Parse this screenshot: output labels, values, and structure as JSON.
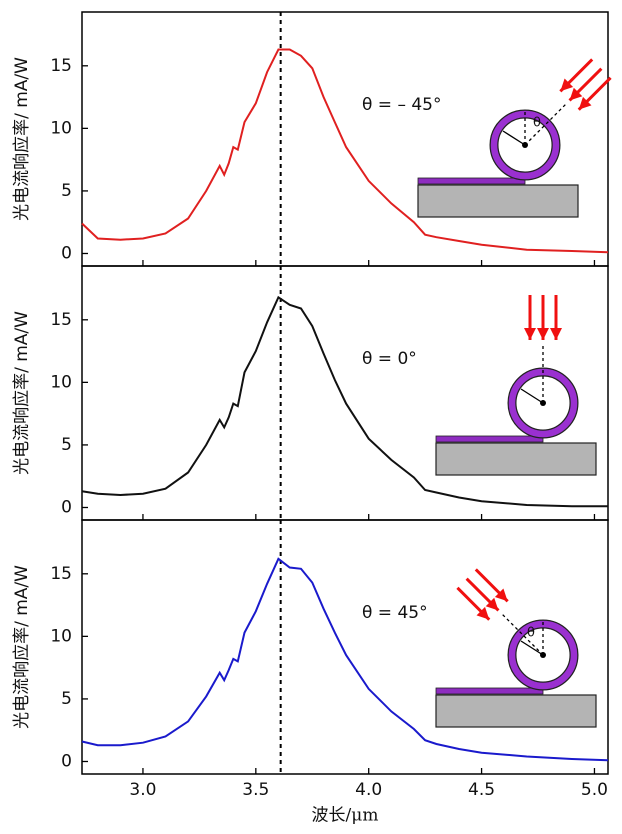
{
  "chart_data": [
    {
      "type": "line",
      "ylabel": "光电流响应率/ mA/W",
      "annotation": "θ = – 45°",
      "inset_label": "θ",
      "color": "#e02020",
      "x": [
        2.73,
        2.8,
        2.9,
        3.0,
        3.1,
        3.2,
        3.28,
        3.34,
        3.36,
        3.38,
        3.4,
        3.42,
        3.45,
        3.5,
        3.55,
        3.6,
        3.65,
        3.7,
        3.75,
        3.8,
        3.85,
        3.9,
        4.0,
        4.1,
        4.2,
        4.25,
        4.3,
        4.4,
        4.5,
        4.7,
        4.9,
        5.06
      ],
      "values": [
        2.4,
        1.2,
        1.1,
        1.2,
        1.6,
        2.8,
        5.0,
        7.0,
        6.3,
        7.2,
        8.5,
        8.3,
        10.5,
        12.0,
        14.5,
        16.3,
        16.3,
        15.8,
        14.8,
        12.5,
        10.5,
        8.5,
        5.8,
        4.0,
        2.5,
        1.5,
        1.3,
        1.0,
        0.7,
        0.3,
        0.2,
        0.1
      ],
      "vline": 3.61,
      "ylim": [
        -1,
        19.3
      ],
      "yticks": [
        0,
        5,
        10,
        15
      ]
    },
    {
      "type": "line",
      "ylabel": "光电流响应率/ mA/W",
      "annotation": "θ = 0°",
      "color": "#111111",
      "x": [
        2.73,
        2.8,
        2.9,
        3.0,
        3.1,
        3.2,
        3.28,
        3.34,
        3.36,
        3.38,
        3.4,
        3.42,
        3.45,
        3.5,
        3.55,
        3.6,
        3.65,
        3.7,
        3.75,
        3.8,
        3.85,
        3.9,
        4.0,
        4.1,
        4.2,
        4.25,
        4.3,
        4.4,
        4.5,
        4.7,
        4.9,
        5.06
      ],
      "values": [
        1.3,
        1.1,
        1.0,
        1.1,
        1.5,
        2.8,
        5.0,
        7.0,
        6.4,
        7.2,
        8.3,
        8.1,
        10.8,
        12.5,
        14.8,
        16.8,
        16.2,
        15.9,
        14.5,
        12.3,
        10.2,
        8.3,
        5.5,
        3.8,
        2.4,
        1.4,
        1.2,
        0.8,
        0.5,
        0.2,
        0.1,
        0.1
      ],
      "vline": 3.61,
      "ylim": [
        -1,
        19.3
      ],
      "yticks": [
        0,
        5,
        10,
        15
      ]
    },
    {
      "type": "line",
      "ylabel": "光电流响应率/ mA/W",
      "xlabel": "波长/μm",
      "annotation": "θ = 45°",
      "inset_label": "θ",
      "color": "#1a1acc",
      "x": [
        2.73,
        2.8,
        2.9,
        3.0,
        3.1,
        3.2,
        3.28,
        3.34,
        3.36,
        3.38,
        3.4,
        3.42,
        3.45,
        3.5,
        3.55,
        3.6,
        3.65,
        3.7,
        3.75,
        3.8,
        3.85,
        3.9,
        4.0,
        4.1,
        4.2,
        4.25,
        4.3,
        4.4,
        4.5,
        4.7,
        4.9,
        5.06
      ],
      "values": [
        1.6,
        1.3,
        1.3,
        1.5,
        2.0,
        3.2,
        5.2,
        7.1,
        6.5,
        7.3,
        8.2,
        8.0,
        10.3,
        12.0,
        14.2,
        16.2,
        15.5,
        15.4,
        14.3,
        12.2,
        10.3,
        8.5,
        5.8,
        4.0,
        2.6,
        1.7,
        1.4,
        1.0,
        0.7,
        0.4,
        0.2,
        0.1
      ],
      "vline": 3.61,
      "ylim": [
        -1,
        19.3
      ],
      "yticks": [
        0,
        5,
        10,
        15
      ],
      "xlim": [
        2.73,
        5.06
      ],
      "xticks": [
        {
          "value": 3,
          "label": "3.0"
        },
        3.5,
        {
          "value": 4,
          "label": "4.0"
        },
        4.5,
        {
          "value": 5,
          "label": "5.0"
        }
      ]
    }
  ]
}
